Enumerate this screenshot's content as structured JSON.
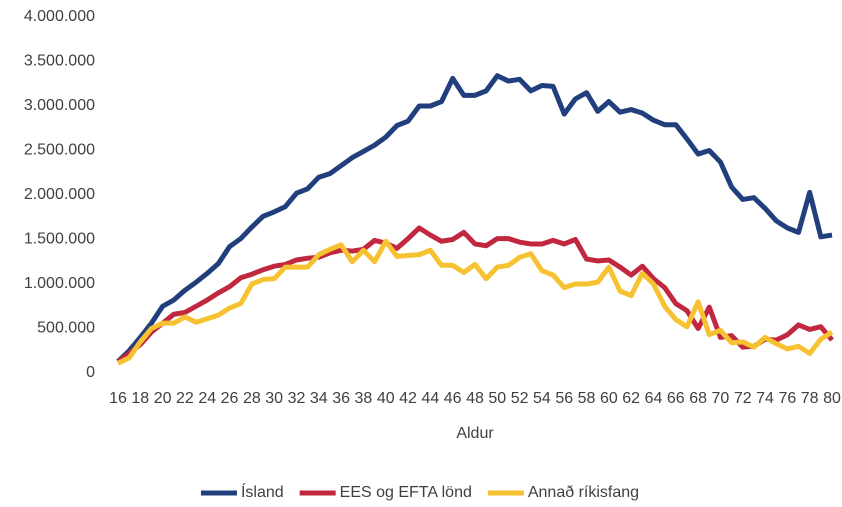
{
  "chart_data": {
    "type": "line",
    "x_label": "Aldur",
    "categories": [
      "16",
      null,
      "18",
      null,
      "20",
      null,
      "22",
      null,
      "24",
      null,
      "26",
      null,
      "28",
      null,
      "30",
      null,
      "32",
      null,
      "34",
      null,
      "36",
      null,
      "38",
      null,
      "40",
      null,
      "42",
      null,
      "44",
      null,
      "46",
      null,
      "48",
      null,
      "50",
      null,
      "52",
      null,
      "54",
      null,
      "56",
      null,
      "58",
      null,
      "60",
      null,
      "62",
      null,
      "64",
      null,
      "66",
      null,
      "68",
      null,
      "70",
      null,
      "72",
      null,
      "74",
      null,
      "76",
      null,
      "78",
      null,
      "80"
    ],
    "series": [
      {
        "name": "Ísland",
        "color": "#203f7c",
        "values": [
          130000,
          250000,
          400000,
          560000,
          750000,
          820000,
          930000,
          1020000,
          1120000,
          1230000,
          1420000,
          1510000,
          1640000,
          1760000,
          1810000,
          1870000,
          2020000,
          2070000,
          2200000,
          2240000,
          2330000,
          2420000,
          2490000,
          2560000,
          2650000,
          2780000,
          2830000,
          3000000,
          3000000,
          3050000,
          3310000,
          3120000,
          3120000,
          3170000,
          3340000,
          3280000,
          3300000,
          3170000,
          3230000,
          3220000,
          2910000,
          3080000,
          3150000,
          2940000,
          3050000,
          2930000,
          2960000,
          2920000,
          2840000,
          2790000,
          2790000,
          2630000,
          2460000,
          2500000,
          2370000,
          2090000,
          1950000,
          1970000,
          1850000,
          1710000,
          1630000,
          1580000,
          2030000,
          1530000,
          1550000
        ]
      },
      {
        "name": "EES og EFTA lönd",
        "color": "#c1283f",
        "values": [
          130000,
          220000,
          320000,
          460000,
          560000,
          660000,
          680000,
          750000,
          820000,
          900000,
          970000,
          1070000,
          1110000,
          1160000,
          1200000,
          1220000,
          1270000,
          1290000,
          1300000,
          1350000,
          1380000,
          1370000,
          1390000,
          1490000,
          1460000,
          1400000,
          1510000,
          1630000,
          1550000,
          1480000,
          1500000,
          1580000,
          1450000,
          1430000,
          1510000,
          1510000,
          1470000,
          1450000,
          1450000,
          1490000,
          1450000,
          1500000,
          1280000,
          1260000,
          1270000,
          1190000,
          1100000,
          1200000,
          1060000,
          960000,
          780000,
          700000,
          500000,
          740000,
          400000,
          420000,
          290000,
          300000,
          380000,
          370000,
          430000,
          540000,
          490000,
          520000,
          370000
        ]
      },
      {
        "name": "Annað ríkisfang",
        "color": "#f7c232",
        "values": [
          110000,
          170000,
          350000,
          500000,
          560000,
          560000,
          630000,
          570000,
          610000,
          650000,
          730000,
          780000,
          1000000,
          1050000,
          1060000,
          1190000,
          1190000,
          1190000,
          1330000,
          1390000,
          1440000,
          1250000,
          1380000,
          1250000,
          1480000,
          1310000,
          1320000,
          1330000,
          1380000,
          1210000,
          1210000,
          1130000,
          1220000,
          1060000,
          1190000,
          1210000,
          1300000,
          1340000,
          1150000,
          1100000,
          960000,
          1000000,
          1000000,
          1020000,
          1190000,
          920000,
          870000,
          1120000,
          1000000,
          750000,
          600000,
          520000,
          800000,
          430000,
          480000,
          340000,
          350000,
          290000,
          400000,
          330000,
          270000,
          300000,
          220000,
          380000,
          460000
        ]
      }
    ],
    "ylim": [
      0,
      4000000
    ],
    "yticks": [
      0,
      {
        "value": 500000,
        "label": "500.000"
      },
      {
        "value": 1000000,
        "label": "1.000.000"
      },
      {
        "value": 1500000,
        "label": "1.500.000"
      },
      {
        "value": 2000000,
        "label": "2.000.000"
      },
      {
        "value": 2500000,
        "label": "2.500.000"
      },
      {
        "value": 3000000,
        "label": "3.000.000"
      },
      {
        "value": 3500000,
        "label": "3.500.000"
      },
      {
        "value": 4000000,
        "label": "4.000.000"
      }
    ],
    "grid": false,
    "legend": "bottom"
  }
}
